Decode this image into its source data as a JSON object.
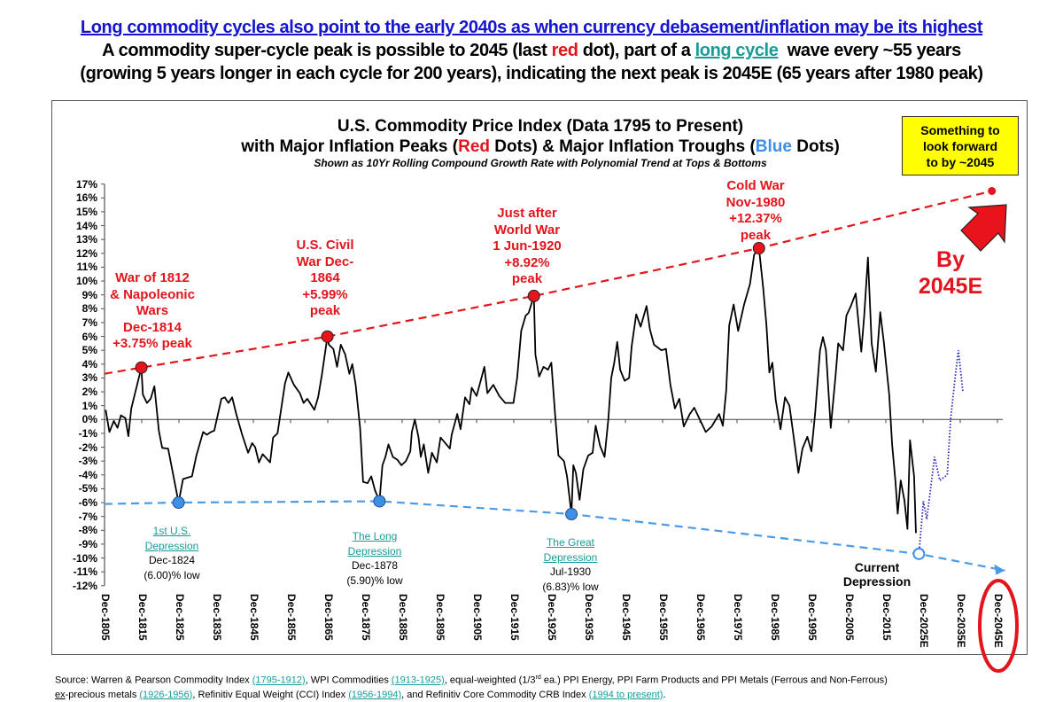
{
  "header": {
    "line1": "Long commodity cycles also point to the early 2040s as when currency debasement/inflation may be its highest",
    "line2_a": "A commodity super-cycle peak is possible to 2045 (last ",
    "line2_red": "red",
    "line2_b": " dot), part of a ",
    "line2_link": "long cycle",
    "line2_c": "  wave every ~55 years",
    "line3": "(growing 5 years longer in each cycle for 200 years), indicating the next peak is 2045E (65 years after 1980 peak)"
  },
  "chart_data": {
    "type": "line",
    "title": "U.S. Commodity Price Index (Data 1795 to Present)",
    "title2_a": "with Major Inflation Peaks (",
    "title2_red": "Red",
    "title2_b": " Dots) & Major Inflation Troughs (",
    "title2_blue": "Blue",
    "title2_c": " Dots)",
    "subtitle": "Shown as 10Yr Rolling Compound Growth Rate with Polynomial Trend  at Tops & Bottoms",
    "xlabel": "",
    "ylabel": "",
    "xlim": [
      1805,
      2045
    ],
    "ylim": [
      -12,
      17
    ],
    "yticks": [
      "17%",
      "16%",
      "15%",
      "14%",
      "13%",
      "12%",
      "11%",
      "10%",
      "9%",
      "8%",
      "7%",
      "6%",
      "5%",
      "4%",
      "3%",
      "2%",
      "1%",
      "0%",
      "-1%",
      "-2%",
      "-3%",
      "-4%",
      "-5%",
      "-6%",
      "-7%",
      "-8%",
      "-9%",
      "-10%",
      "-11%",
      "-12%"
    ],
    "xticks": [
      "Dec-1805",
      "Dec-1815",
      "Dec-1825",
      "Dec-1835",
      "Dec-1845",
      "Dec-1855",
      "Dec-1865",
      "Dec-1875",
      "Dec-1885",
      "Dec-1895",
      "Dec-1905",
      "Dec-1915",
      "Dec-1925",
      "Dec-1935",
      "Dec-1945",
      "Dec-1955",
      "Dec-1965",
      "Dec-1975",
      "Dec-1985",
      "Dec-1995",
      "Dec-2005",
      "Dec-2015",
      "Dec-2025E",
      "Dec-2035E",
      "Dec-2045E"
    ],
    "grid": false,
    "series": [
      {
        "name": "10Yr rolling compound growth rate",
        "color": "#000000",
        "points": [
          [
            1805.3,
            0.7
          ],
          [
            1806.3,
            -0.9
          ],
          [
            1807.5,
            -0.1
          ],
          [
            1808.5,
            -0.6
          ],
          [
            1809.4,
            0.3
          ],
          [
            1810.6,
            0.1
          ],
          [
            1811.4,
            -1.2
          ],
          [
            1812.2,
            0.8
          ],
          [
            1814.9,
            3.75
          ],
          [
            1815.3,
            1.8
          ],
          [
            1816.4,
            1.2
          ],
          [
            1817.4,
            1.5
          ],
          [
            1818.4,
            2.4
          ],
          [
            1819.6,
            -0.8
          ],
          [
            1820.5,
            -2.05
          ],
          [
            1822.1,
            -2.1
          ],
          [
            1824.9,
            -6.0
          ],
          [
            1826.1,
            -4.3
          ],
          [
            1827.3,
            -4.2
          ],
          [
            1828.5,
            -4.1
          ],
          [
            1829.7,
            -2.6
          ],
          [
            1831.5,
            -0.9
          ],
          [
            1832.5,
            -1.1
          ],
          [
            1833.6,
            -0.9
          ],
          [
            1834.5,
            -0.8
          ],
          [
            1836.4,
            1.5
          ],
          [
            1837.3,
            1.6
          ],
          [
            1838.3,
            1.2
          ],
          [
            1839.3,
            1.6
          ],
          [
            1840.4,
            0.4
          ],
          [
            1842,
            -1.1
          ],
          [
            1843.6,
            -2.4
          ],
          [
            1844.7,
            -1.7
          ],
          [
            1845.5,
            -2.0
          ],
          [
            1846.5,
            -3.1
          ],
          [
            1847.5,
            -2.5
          ],
          [
            1849.5,
            -3.1
          ],
          [
            1850.3,
            -1.3
          ],
          [
            1851.5,
            -1.0
          ],
          [
            1853.5,
            2.6
          ],
          [
            1854.4,
            3.4
          ],
          [
            1855.9,
            2.5
          ],
          [
            1857.5,
            1.9
          ],
          [
            1858.5,
            1.2
          ],
          [
            1859.5,
            1.5
          ],
          [
            1861.4,
            0.7
          ],
          [
            1862.4,
            1.6
          ],
          [
            1863.4,
            3.2
          ],
          [
            1864.9,
            5.99
          ],
          [
            1865.3,
            5.4
          ],
          [
            1866.5,
            5.1
          ],
          [
            1867.5,
            3.8
          ],
          [
            1868.5,
            5.4
          ],
          [
            1869.7,
            4.7
          ],
          [
            1870.8,
            3.3
          ],
          [
            1871.6,
            4.0
          ],
          [
            1872.5,
            2.5
          ],
          [
            1873.7,
            -0.6
          ],
          [
            1874.5,
            -4.5
          ],
          [
            1875.7,
            -4.6
          ],
          [
            1876.7,
            -4.1
          ],
          [
            1877.7,
            -5.1
          ],
          [
            1878.9,
            -5.9
          ],
          [
            1879.7,
            -3.3
          ],
          [
            1880.5,
            -2.7
          ],
          [
            1881.3,
            -1.8
          ],
          [
            1882.5,
            -2.7
          ],
          [
            1883.7,
            -2.9
          ],
          [
            1884.8,
            -3.3
          ],
          [
            1886,
            -3.0
          ],
          [
            1887.2,
            -2.3
          ],
          [
            1887.6,
            -0.9
          ],
          [
            1888.4,
            0.0
          ],
          [
            1889.4,
            -1.3
          ],
          [
            1890,
            -2.7
          ],
          [
            1890.8,
            -1.8
          ],
          [
            1892,
            -3.85
          ],
          [
            1893,
            -2.4
          ],
          [
            1894.3,
            -3.1
          ],
          [
            1895.3,
            -1.3
          ],
          [
            1896.6,
            -1.7
          ],
          [
            1897.8,
            -2.1
          ],
          [
            1898.3,
            -1.1
          ],
          [
            1899.8,
            0.4
          ],
          [
            1900.7,
            -0.7
          ],
          [
            1901.9,
            1.6
          ],
          [
            1903.1,
            1.1
          ],
          [
            1903.7,
            2.3
          ],
          [
            1905,
            1.7
          ],
          [
            1906.3,
            3.0
          ],
          [
            1907.1,
            3.8
          ],
          [
            1907.9,
            1.9
          ],
          [
            1909.5,
            2.5
          ],
          [
            1911.1,
            1.7
          ],
          [
            1912.7,
            1.2
          ],
          [
            1914.9,
            1.2
          ],
          [
            1915.9,
            3.0
          ],
          [
            1917,
            6.4
          ],
          [
            1918.2,
            7.5
          ],
          [
            1919,
            7.7
          ],
          [
            1920.4,
            8.92
          ],
          [
            1920.8,
            4.7
          ],
          [
            1921.8,
            3.1
          ],
          [
            1923,
            3.8
          ],
          [
            1924.2,
            3.6
          ],
          [
            1925.1,
            4.1
          ],
          [
            1926.1,
            0.4
          ],
          [
            1927,
            -2.6
          ],
          [
            1928.5,
            -3.0
          ],
          [
            1929.3,
            -4.1
          ],
          [
            1930.5,
            -6.83
          ],
          [
            1931,
            -3.3
          ],
          [
            1931.7,
            -3.85
          ],
          [
            1932.7,
            -5.8
          ],
          [
            1933.7,
            -3.6
          ],
          [
            1935,
            -2.6
          ],
          [
            1936.2,
            -2.4
          ],
          [
            1937,
            -0.45
          ],
          [
            1938.2,
            -1.9
          ],
          [
            1939.4,
            -2.7
          ],
          [
            1940.4,
            0.0
          ],
          [
            1941.2,
            3.0
          ],
          [
            1942,
            4.1
          ],
          [
            1942.8,
            5.6
          ],
          [
            1943.6,
            3.6
          ],
          [
            1944.8,
            2.8
          ],
          [
            1946,
            3.0
          ],
          [
            1946.7,
            5.3
          ],
          [
            1947.9,
            7.6
          ],
          [
            1949.1,
            6.7
          ],
          [
            1950.7,
            8.2
          ],
          [
            1951.6,
            6.5
          ],
          [
            1952.7,
            5.4
          ],
          [
            1954.7,
            5.0
          ],
          [
            1955.9,
            5.1
          ],
          [
            1957.1,
            2.5
          ],
          [
            1958.3,
            0.8
          ],
          [
            1959.5,
            1.5
          ],
          [
            1960.7,
            -0.5
          ],
          [
            1962.3,
            0.4
          ],
          [
            1963.5,
            0.85
          ],
          [
            1965,
            0.0
          ],
          [
            1966.6,
            -0.9
          ],
          [
            1968.2,
            -0.5
          ],
          [
            1970.2,
            0.4
          ],
          [
            1971.2,
            -0.45
          ],
          [
            1972.1,
            2.1
          ],
          [
            1972.9,
            6.8
          ],
          [
            1974.1,
            8.3
          ],
          [
            1975.3,
            6.4
          ],
          [
            1976.9,
            8.3
          ],
          [
            1978.5,
            9.8
          ],
          [
            1979.6,
            11.9
          ],
          [
            1980.9,
            12.37
          ],
          [
            1982,
            9.6
          ],
          [
            1982.9,
            6.85
          ],
          [
            1983.7,
            3.4
          ],
          [
            1984.5,
            4.1
          ],
          [
            1985.4,
            1.4
          ],
          [
            1986.7,
            -0.7
          ],
          [
            1987.9,
            1.6
          ],
          [
            1989.1,
            1.0
          ],
          [
            1990.5,
            -1.8
          ],
          [
            1991.5,
            -3.85
          ],
          [
            1992.6,
            -2.1
          ],
          [
            1993.9,
            -1.25
          ],
          [
            1995,
            -2.3
          ],
          [
            1996,
            0.45
          ],
          [
            1997.3,
            5.0
          ],
          [
            1998.1,
            5.95
          ],
          [
            1998.9,
            5.0
          ],
          [
            2000.2,
            -0.6
          ],
          [
            2001.5,
            3.2
          ],
          [
            2002.2,
            5.5
          ],
          [
            2003.5,
            5.0
          ],
          [
            2004.4,
            7.5
          ],
          [
            2005.6,
            8.2
          ],
          [
            2006.9,
            9.1
          ],
          [
            2008.4,
            4.9
          ],
          [
            2009.2,
            7.5
          ],
          [
            2010.2,
            11.7
          ],
          [
            2011.2,
            5.5
          ],
          [
            2012.3,
            3.45
          ],
          [
            2013.5,
            7.75
          ],
          [
            2014.5,
            5.5
          ],
          [
            2015.9,
            1.8
          ],
          [
            2016.7,
            -1.8
          ],
          [
            2017.6,
            -4.5
          ],
          [
            2018.2,
            -6.8
          ],
          [
            2019,
            -4.4
          ],
          [
            2020,
            -5.85
          ],
          [
            2020.8,
            -7.9
          ],
          [
            2021.5,
            -1.5
          ],
          [
            2022.6,
            -4.1
          ],
          [
            2023.1,
            -8.2
          ]
        ]
      },
      {
        "name": "forecast",
        "color": "#2525b8",
        "points": [
          [
            2023.9,
            -9.7
          ],
          [
            2025.1,
            -5.9
          ],
          [
            2026,
            -7.2
          ],
          [
            2028.1,
            -2.7
          ],
          [
            2029.5,
            -4.4
          ],
          [
            2031.5,
            -4.0
          ],
          [
            2032.4,
            0.0
          ],
          [
            2033.7,
            3.2
          ],
          [
            2034.5,
            5.0
          ],
          [
            2035.7,
            2.05
          ]
        ]
      }
    ],
    "peak_trend": {
      "color": "#e3141b",
      "points": [
        [
          1805,
          3.3
        ],
        [
          1814.9,
          3.75
        ],
        [
          1864.9,
          5.99
        ],
        [
          1920.4,
          8.92
        ],
        [
          1980.9,
          12.37
        ],
        [
          2043.5,
          16.5
        ]
      ]
    },
    "trough_trend": {
      "color": "#4a9ae6",
      "points": [
        [
          1805,
          -6.1
        ],
        [
          1824.9,
          -6.0
        ],
        [
          1878.9,
          -5.9
        ],
        [
          1930.5,
          -6.83
        ],
        [
          2023.9,
          -9.7
        ],
        [
          2047,
          -10.9
        ]
      ]
    },
    "peaks": [
      {
        "year": 1814.9,
        "value": 3.75,
        "lines": [
          "War of 1812",
          "& Napoleonic",
          "Wars",
          "Dec-1814",
          "+3.75% peak"
        ]
      },
      {
        "year": 1864.9,
        "value": 5.99,
        "lines": [
          "U.S. Civil",
          "War Dec-",
          "1864",
          "+5.99%",
          "peak"
        ]
      },
      {
        "year": 1920.4,
        "value": 8.92,
        "lines": [
          "Just after",
          "World War",
          "1 Jun-1920",
          "+8.92%",
          "peak"
        ]
      },
      {
        "year": 1980.9,
        "value": 12.37,
        "lines": [
          "Cold War",
          "Nov-1980",
          "+12.37%",
          "peak"
        ]
      },
      {
        "year": 2043.5,
        "value": 16.5,
        "lines": []
      }
    ],
    "troughs": [
      {
        "year": 1824.9,
        "value": -6.0,
        "name": [
          "1st U.S.",
          "Depression"
        ],
        "lines": [
          "Dec-1824",
          "(6.00)% low"
        ]
      },
      {
        "year": 1878.9,
        "value": -5.9,
        "name": [
          "The Long",
          "Depression"
        ],
        "lines": [
          "Dec-1878",
          "(5.90)% low"
        ]
      },
      {
        "year": 1930.5,
        "value": -6.83,
        "name": [
          "The Great",
          "Depression"
        ],
        "lines": [
          "Jul-1930",
          "(6.83)% low"
        ]
      },
      {
        "year": 2023.9,
        "value": -9.7,
        "name": [],
        "lines": [
          "Current",
          "Depression"
        ],
        "hollow": true
      }
    ],
    "callout": [
      "Something to",
      "look forward",
      "to by ~2045"
    ],
    "by_text": [
      "By",
      "2045E"
    ],
    "highlight_tick": "Dec-2045E"
  },
  "footer": {
    "l1a": "Source: Warren & Pearson Commodity Index ",
    "l1b": "(1795-1912)",
    "l1c": ", WPI Commodities ",
    "l1d": "(1913-1925)",
    "l1e": ", equal-weighted (1/3",
    "l1sup": "rd",
    "l1f": " ea.) PPI Energy, PPI Farm Products and PPI Metals (Ferrous and Non-Ferrous)",
    "l2a": "ex",
    "l2b": "-precious metals ",
    "l2c": "(1926-1956)",
    "l2d": ", Refinitiv Equal Weight (CCI) Index ",
    "l2e": "(1956-1994)",
    "l2f": ", and Refinitiv Core Commodity CRB Index ",
    "l2g": "(1994 to present)",
    "l2h": "."
  }
}
